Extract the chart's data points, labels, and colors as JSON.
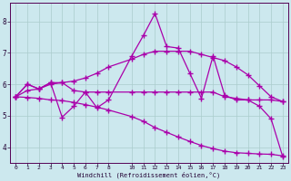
{
  "xlabel": "Windchill (Refroidissement éolien,°C)",
  "background_color": "#cce8ee",
  "line_color": "#aa00aa",
  "hours": [
    0,
    1,
    2,
    3,
    4,
    5,
    6,
    7,
    8,
    10,
    11,
    12,
    13,
    14,
    15,
    16,
    17,
    18,
    19,
    20,
    21,
    22,
    23
  ],
  "line1": [
    5.6,
    6.0,
    5.85,
    6.05,
    4.95,
    5.3,
    5.75,
    5.25,
    5.5,
    6.9,
    7.55,
    8.25,
    7.2,
    7.15,
    6.35,
    5.55,
    6.9,
    5.65,
    5.5,
    5.5,
    5.3,
    4.9,
    3.7
  ],
  "line2": [
    5.6,
    6.0,
    5.85,
    6.05,
    6.05,
    5.8,
    5.75,
    5.75,
    5.75,
    5.75,
    5.75,
    5.75,
    5.75,
    5.75,
    5.75,
    5.75,
    5.75,
    5.6,
    5.55,
    5.5,
    5.5,
    5.5,
    5.45
  ],
  "line3": [
    5.6,
    5.8,
    5.85,
    6.0,
    6.05,
    6.1,
    6.2,
    6.35,
    6.55,
    6.8,
    6.95,
    7.05,
    7.05,
    7.05,
    7.05,
    6.95,
    6.85,
    6.75,
    6.55,
    6.3,
    5.95,
    5.6,
    5.45
  ],
  "line4": [
    5.6,
    5.58,
    5.55,
    5.5,
    5.48,
    5.42,
    5.35,
    5.27,
    5.18,
    4.97,
    4.82,
    4.62,
    4.47,
    4.32,
    4.18,
    4.05,
    3.95,
    3.87,
    3.82,
    3.8,
    3.78,
    3.77,
    3.72
  ],
  "ylim": [
    3.5,
    8.6
  ],
  "yticks": [
    4,
    5,
    6,
    7,
    8
  ],
  "xtick_labels": [
    "0",
    "1",
    "2",
    "3",
    "4",
    "5",
    "6",
    "7",
    "8",
    "10",
    "11",
    "12",
    "13",
    "14",
    "15",
    "16",
    "17",
    "18",
    "19",
    "20",
    "21",
    "22",
    "23"
  ]
}
